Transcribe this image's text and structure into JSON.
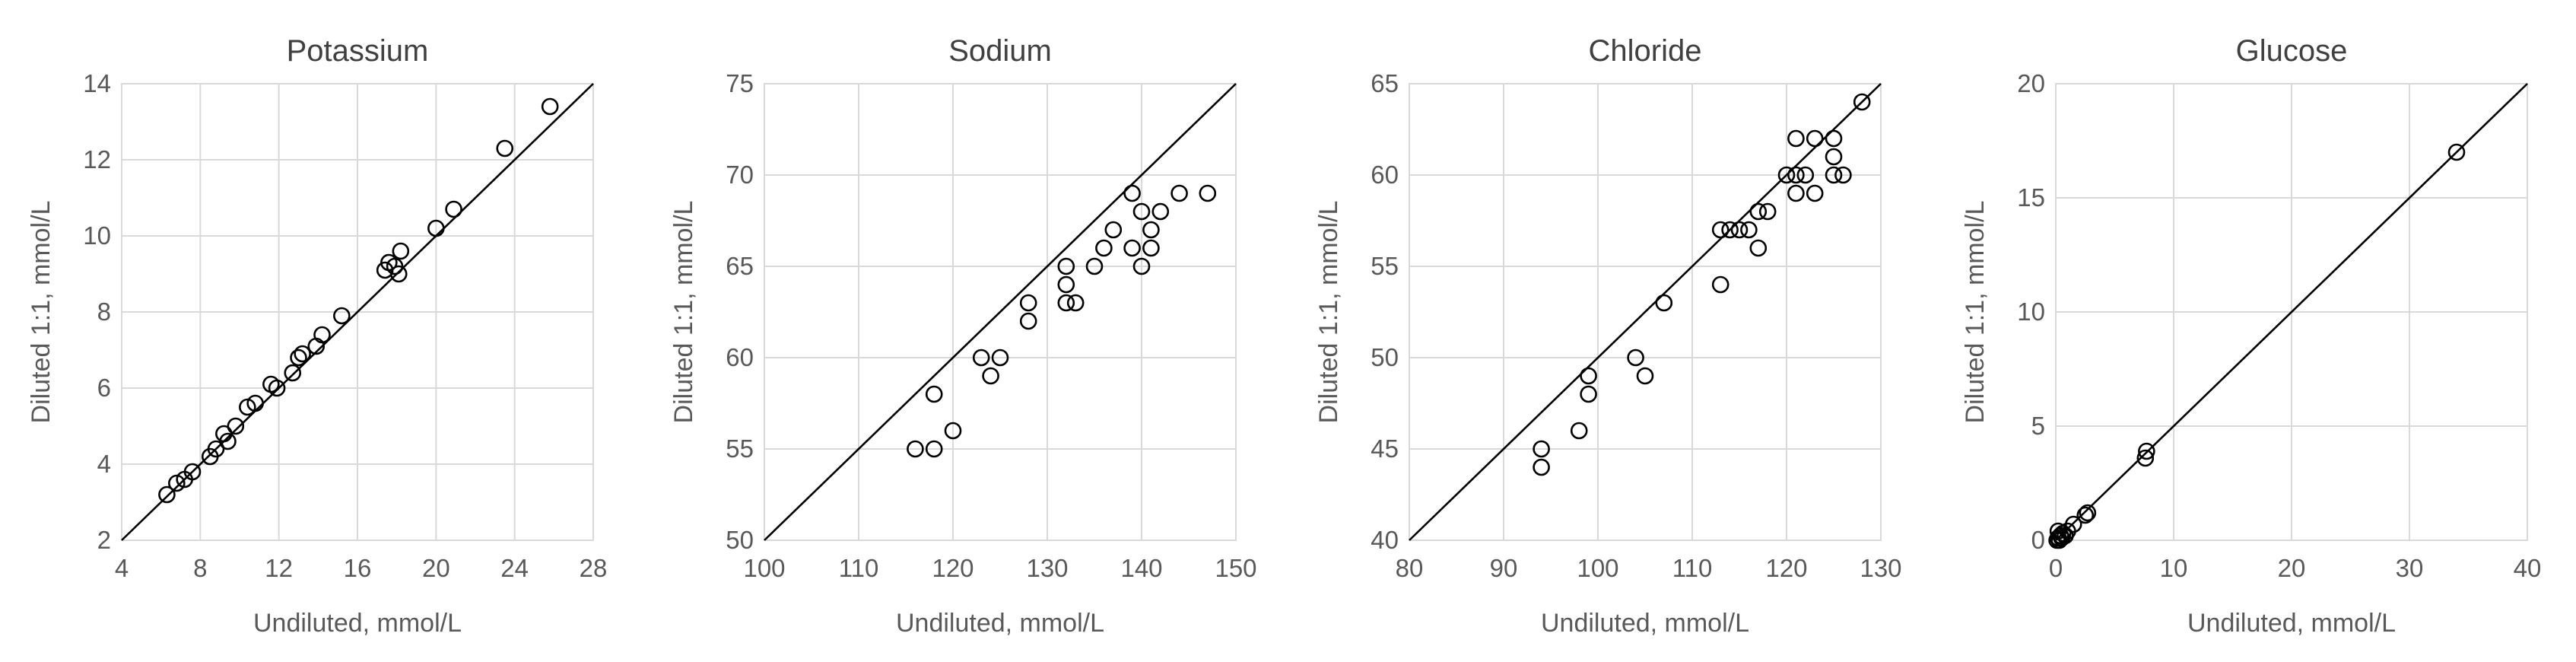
{
  "chart_data": [
    {
      "type": "scatter",
      "title": "Potassium",
      "xlabel": "Undiluted, mmol/L",
      "ylabel": "Diluted 1:1, mmol/L",
      "xlim": [
        4,
        28
      ],
      "ylim": [
        2,
        14
      ],
      "xticks": [
        4,
        8,
        12,
        16,
        20,
        24,
        28
      ],
      "yticks": [
        2,
        4,
        6,
        8,
        10,
        12,
        14
      ],
      "xtick_labels": [
        "4",
        "8",
        "12",
        "16",
        "20",
        "24",
        "28"
      ],
      "ytick_labels": [
        "2",
        "4",
        "6",
        "8",
        "10",
        "12",
        "14"
      ],
      "identity_line": [
        [
          4,
          2
        ],
        [
          28,
          14
        ]
      ],
      "grid": true,
      "points": [
        [
          6.3,
          3.2
        ],
        [
          6.8,
          3.5
        ],
        [
          7.2,
          3.6
        ],
        [
          7.6,
          3.8
        ],
        [
          8.5,
          4.2
        ],
        [
          8.8,
          4.4
        ],
        [
          9.2,
          4.8
        ],
        [
          9.4,
          4.6
        ],
        [
          9.8,
          5.0
        ],
        [
          10.4,
          5.5
        ],
        [
          10.8,
          5.6
        ],
        [
          11.6,
          6.1
        ],
        [
          11.9,
          6.0
        ],
        [
          12.7,
          6.4
        ],
        [
          13.0,
          6.8
        ],
        [
          13.2,
          6.9
        ],
        [
          13.9,
          7.1
        ],
        [
          14.2,
          7.4
        ],
        [
          15.2,
          7.9
        ],
        [
          17.4,
          9.1
        ],
        [
          17.6,
          9.3
        ],
        [
          17.9,
          9.2
        ],
        [
          18.1,
          9.0
        ],
        [
          18.2,
          9.6
        ],
        [
          20.0,
          10.2
        ],
        [
          20.9,
          10.7
        ],
        [
          23.5,
          12.3
        ],
        [
          25.8,
          13.4
        ]
      ]
    },
    {
      "type": "scatter",
      "title": "Sodium",
      "xlabel": "Undiluted, mmol/L",
      "ylabel": "Diluted 1:1, mmol/L",
      "xlim": [
        100,
        150
      ],
      "ylim": [
        50,
        75
      ],
      "xticks": [
        100,
        110,
        120,
        130,
        140,
        150
      ],
      "yticks": [
        50,
        55,
        60,
        65,
        70,
        75
      ],
      "xtick_labels": [
        "100",
        "110",
        "120",
        "130",
        "140",
        "150"
      ],
      "ytick_labels": [
        "50",
        "55",
        "60",
        "65",
        "70",
        "75"
      ],
      "identity_line": [
        [
          100,
          50
        ],
        [
          150,
          75
        ]
      ],
      "grid": true,
      "points": [
        [
          116,
          55
        ],
        [
          118,
          55
        ],
        [
          118,
          58
        ],
        [
          120,
          56
        ],
        [
          123,
          60
        ],
        [
          124,
          59
        ],
        [
          125,
          60
        ],
        [
          128,
          62
        ],
        [
          128,
          63
        ],
        [
          132,
          63
        ],
        [
          132,
          64
        ],
        [
          132,
          65
        ],
        [
          133,
          63
        ],
        [
          135,
          65
        ],
        [
          136,
          66
        ],
        [
          137,
          67
        ],
        [
          139,
          69
        ],
        [
          139,
          66
        ],
        [
          140,
          68
        ],
        [
          140,
          65
        ],
        [
          141,
          66
        ],
        [
          141,
          67
        ],
        [
          142,
          68
        ],
        [
          144,
          69
        ],
        [
          147,
          69
        ]
      ]
    },
    {
      "type": "scatter",
      "title": "Chloride",
      "xlabel": "Undiluted, mmol/L",
      "ylabel": "Diluted 1:1, mmol/L",
      "xlim": [
        80,
        130
      ],
      "ylim": [
        40,
        65
      ],
      "xticks": [
        80,
        90,
        100,
        110,
        120,
        130
      ],
      "yticks": [
        40,
        45,
        50,
        55,
        60,
        65
      ],
      "xtick_labels": [
        "80",
        "90",
        "100",
        "110",
        "120",
        "130"
      ],
      "ytick_labels": [
        "40",
        "45",
        "50",
        "55",
        "60",
        "65"
      ],
      "identity_line": [
        [
          80,
          40
        ],
        [
          130,
          65
        ]
      ],
      "grid": true,
      "points": [
        [
          94,
          44
        ],
        [
          94,
          45
        ],
        [
          98,
          46
        ],
        [
          99,
          48
        ],
        [
          99,
          49
        ],
        [
          104,
          50
        ],
        [
          105,
          49
        ],
        [
          107,
          53
        ],
        [
          113,
          54
        ],
        [
          113,
          57
        ],
        [
          114,
          57
        ],
        [
          115,
          57
        ],
        [
          116,
          57
        ],
        [
          117,
          58
        ],
        [
          117,
          56
        ],
        [
          118,
          58
        ],
        [
          120,
          60
        ],
        [
          121,
          60
        ],
        [
          121,
          59
        ],
        [
          121,
          62
        ],
        [
          122,
          60
        ],
        [
          123,
          62
        ],
        [
          123,
          59
        ],
        [
          125,
          62
        ],
        [
          125,
          61
        ],
        [
          125,
          60
        ],
        [
          126,
          60
        ],
        [
          128,
          64
        ]
      ]
    },
    {
      "type": "scatter",
      "title": "Glucose",
      "xlabel": "Undiluted, mmol/L",
      "ylabel": "Diluted 1:1, mmol/L",
      "xlim": [
        0,
        40
      ],
      "ylim": [
        0,
        20
      ],
      "xticks": [
        0,
        10,
        20,
        30,
        40
      ],
      "yticks": [
        0,
        5,
        10,
        15,
        20
      ],
      "xtick_labels": [
        "0",
        "10",
        "20",
        "30",
        "40"
      ],
      "ytick_labels": [
        "0",
        "5",
        "10",
        "15",
        "20"
      ],
      "identity_line": [
        [
          0,
          0
        ],
        [
          40,
          20
        ]
      ],
      "grid": true,
      "points": [
        [
          0.1,
          0.0
        ],
        [
          0.2,
          0.1
        ],
        [
          0.3,
          0.0
        ],
        [
          0.4,
          0.2
        ],
        [
          0.5,
          0.1
        ],
        [
          0.6,
          0.3
        ],
        [
          0.2,
          0.4
        ],
        [
          0.8,
          0.2
        ],
        [
          1.0,
          0.4
        ],
        [
          1.5,
          0.7
        ],
        [
          2.5,
          1.1
        ],
        [
          2.7,
          1.2
        ],
        [
          7.6,
          3.6
        ],
        [
          7.7,
          3.9
        ],
        [
          34.0,
          17.0
        ]
      ]
    }
  ]
}
